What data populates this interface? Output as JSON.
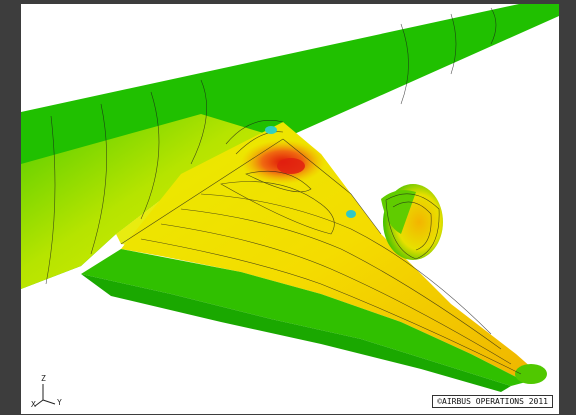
{
  "viewport": {
    "background": "#ffffff"
  },
  "colormap": [
    "#00b400",
    "#3cc800",
    "#a8e000",
    "#f0f000",
    "#f5c000",
    "#f08020",
    "#e02010"
  ],
  "axis_triad": {
    "z_label": "Z",
    "x_label": "X",
    "y_label": "Y"
  },
  "copyright": "©AIRBUS OPERATIONS 2011"
}
